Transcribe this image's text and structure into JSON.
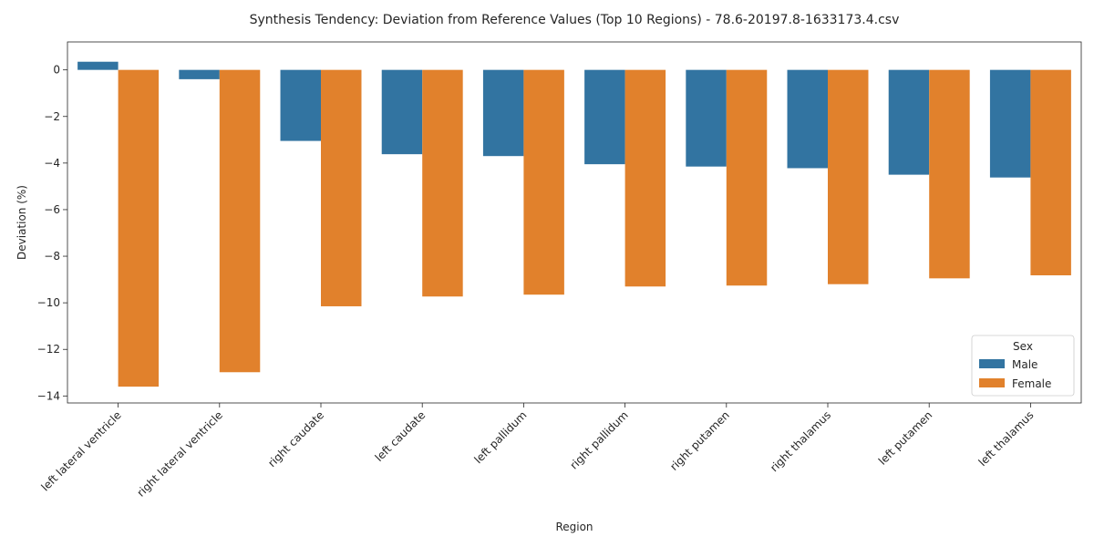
{
  "chart_data": {
    "type": "bar",
    "title": "Synthesis Tendency: Deviation from Reference Values (Top 10 Regions) - 78.6-20197.8-1633173.4.csv",
    "xlabel": "Region",
    "ylabel": "Deviation (%)",
    "ylim": [
      -14.3,
      1.2
    ],
    "yticks": [
      0,
      -2,
      -4,
      -6,
      -8,
      -10,
      -12,
      -14
    ],
    "categories": [
      "left lateral ventricle",
      "right lateral ventricle",
      "right caudate",
      "left caudate",
      "left pallidum",
      "right pallidum",
      "right putamen",
      "right thalamus",
      "left putamen",
      "left thalamus"
    ],
    "series": [
      {
        "name": "Male",
        "color": "#3274a1",
        "values": [
          0.35,
          -0.4,
          -3.05,
          -3.62,
          -3.7,
          -4.05,
          -4.15,
          -4.22,
          -4.5,
          -4.62
        ]
      },
      {
        "name": "Female",
        "color": "#e1812c",
        "values": [
          -13.6,
          -12.98,
          -10.15,
          -9.73,
          -9.65,
          -9.3,
          -9.26,
          -9.2,
          -8.95,
          -8.82
        ]
      }
    ],
    "legend": {
      "title": "Sex",
      "position": "lower-right"
    },
    "grid": false
  }
}
